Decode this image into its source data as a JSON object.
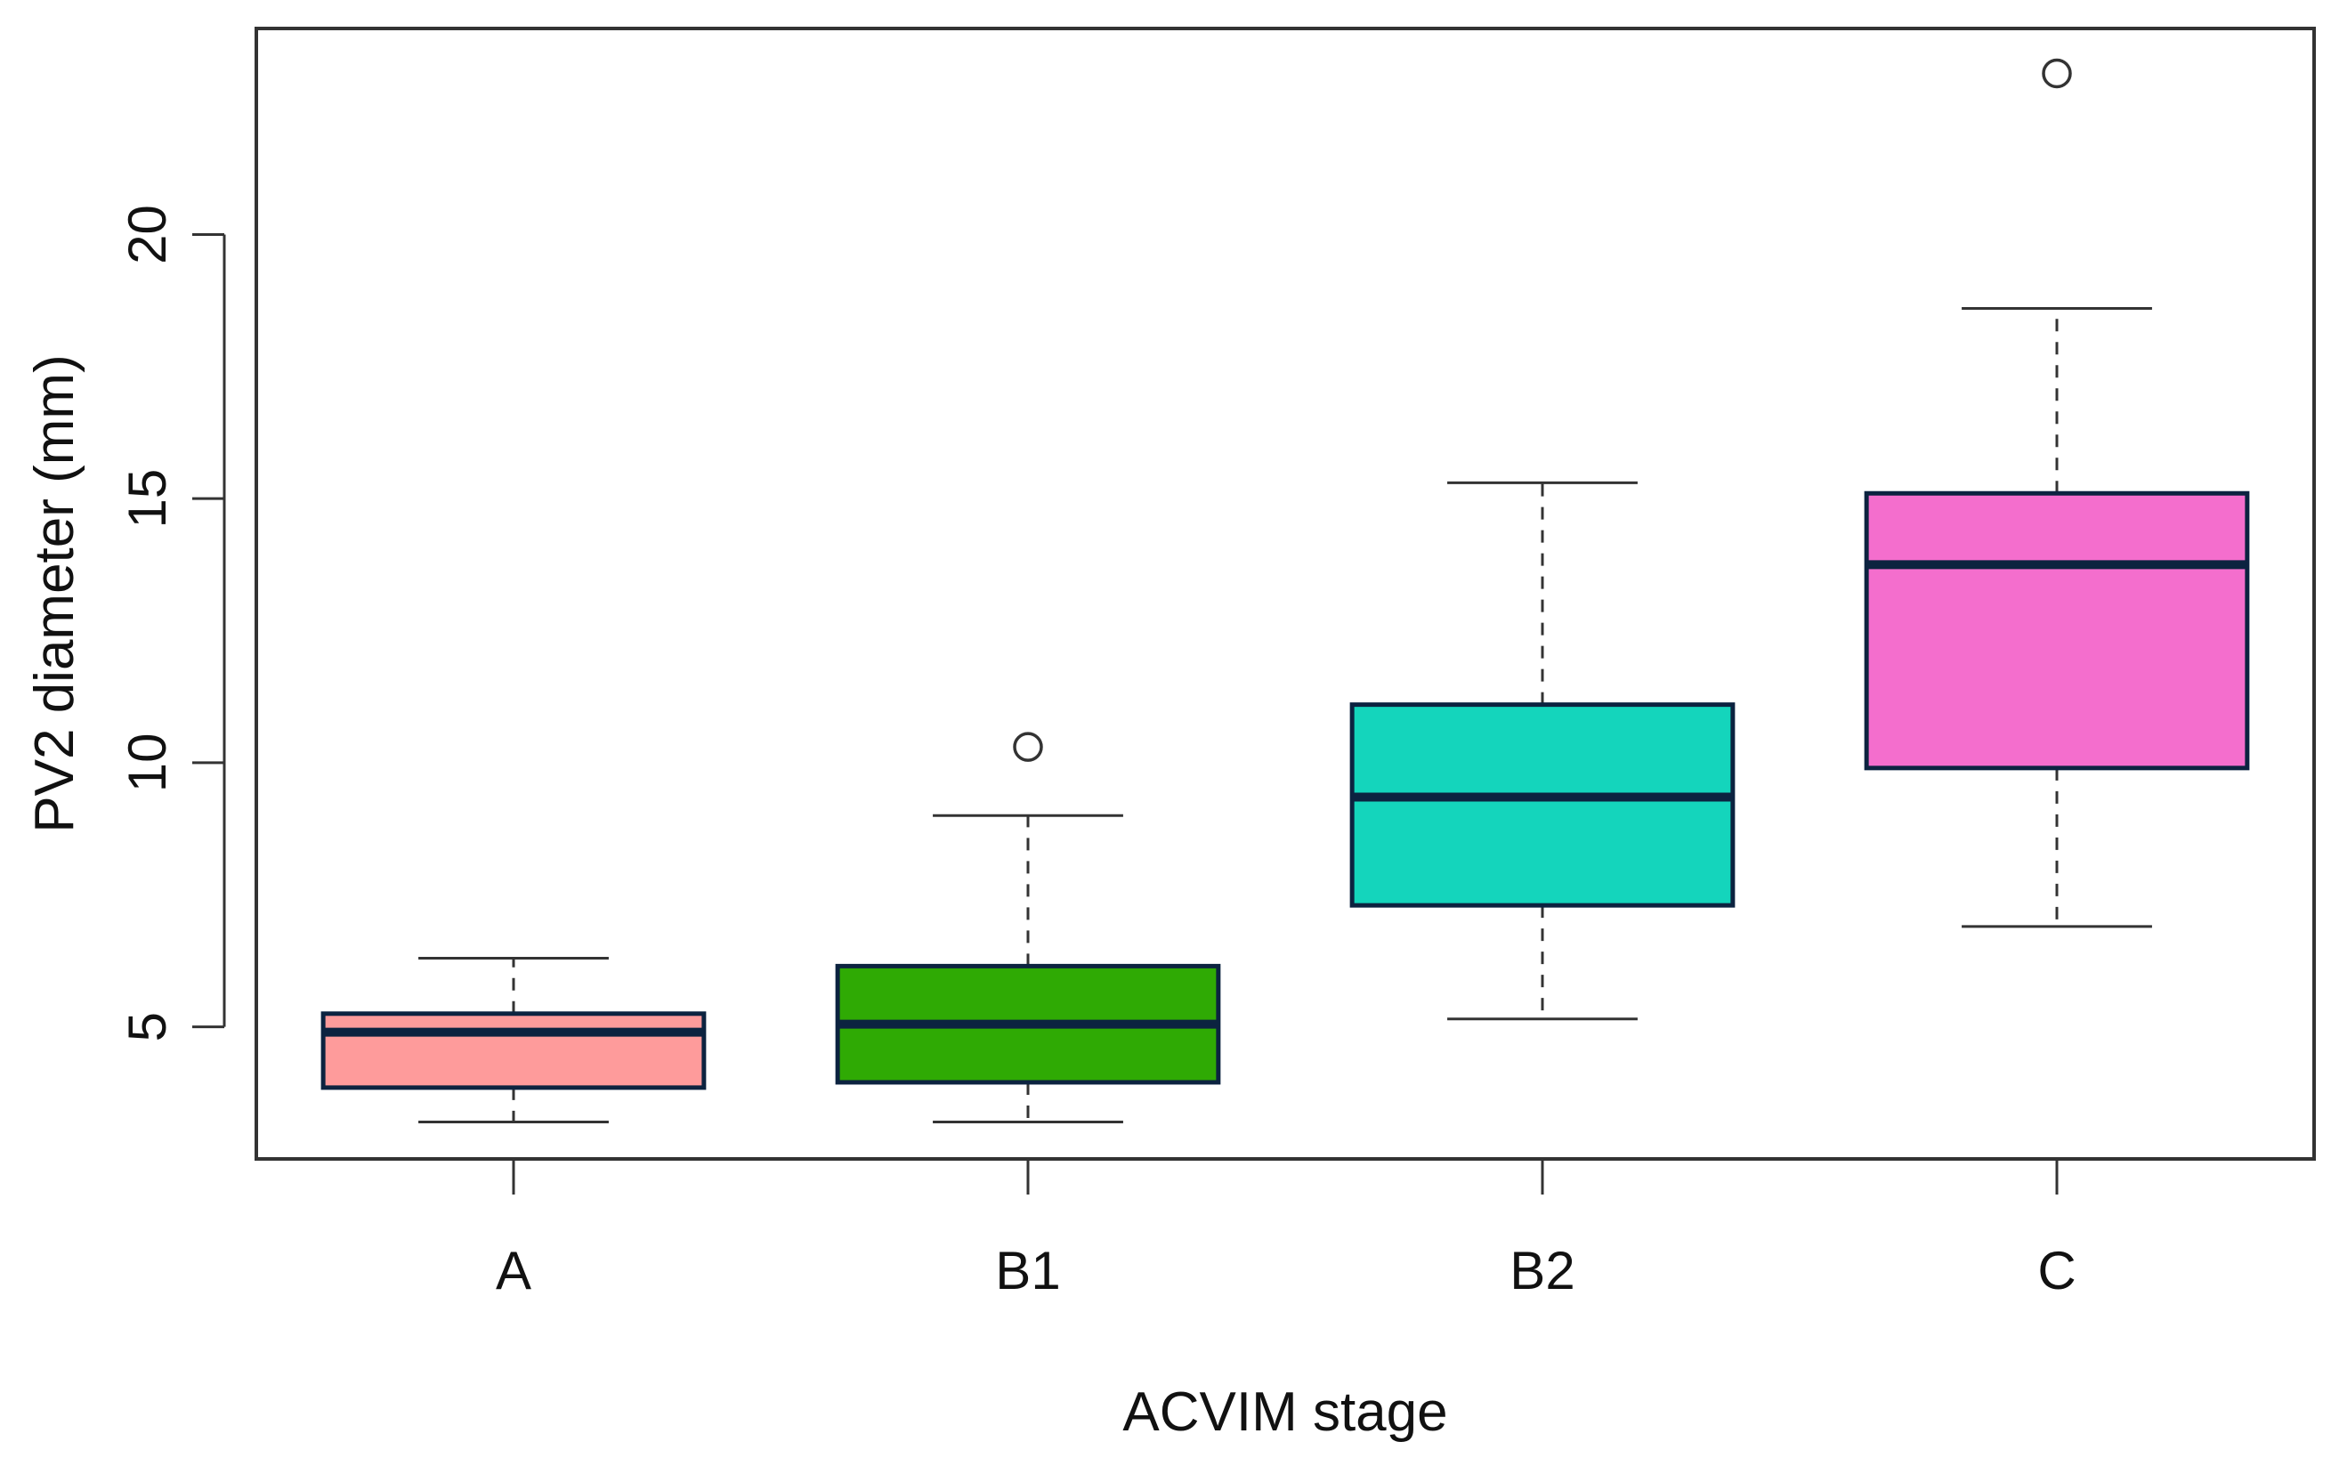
{
  "chart_data": {
    "type": "boxplot",
    "title": "",
    "xlabel": "ACVIM stage",
    "ylabel": "PV2 diameter (mm)",
    "ylim": [
      2.5,
      23.9
    ],
    "yticks": [
      5,
      10,
      15,
      20
    ],
    "grid": false,
    "categories": [
      "A",
      "B1",
      "B2",
      "C"
    ],
    "boxes": [
      {
        "category": "A",
        "whisker_low": 3.2,
        "q1": 3.85,
        "median": 4.9,
        "q3": 5.25,
        "whisker_high": 6.3,
        "outliers": [],
        "color": "#fe9b9b"
      },
      {
        "category": "B1",
        "whisker_low": 3.2,
        "q1": 3.95,
        "median": 5.05,
        "q3": 6.15,
        "whisker_high": 9.0,
        "outliers": [
          10.3
        ],
        "color": "#2faa04"
      },
      {
        "category": "B2",
        "whisker_low": 5.15,
        "q1": 7.3,
        "median": 9.35,
        "q3": 11.1,
        "whisker_high": 15.3,
        "outliers": [],
        "color": "#14d5bc"
      },
      {
        "category": "C",
        "whisker_low": 6.9,
        "q1": 9.9,
        "median": 13.75,
        "q3": 15.1,
        "whisker_high": 18.6,
        "outliers": [
          23.05
        ],
        "color": "#f46ecd"
      }
    ],
    "box_border_color": "#0c2340",
    "median_color": "#0c2340"
  }
}
